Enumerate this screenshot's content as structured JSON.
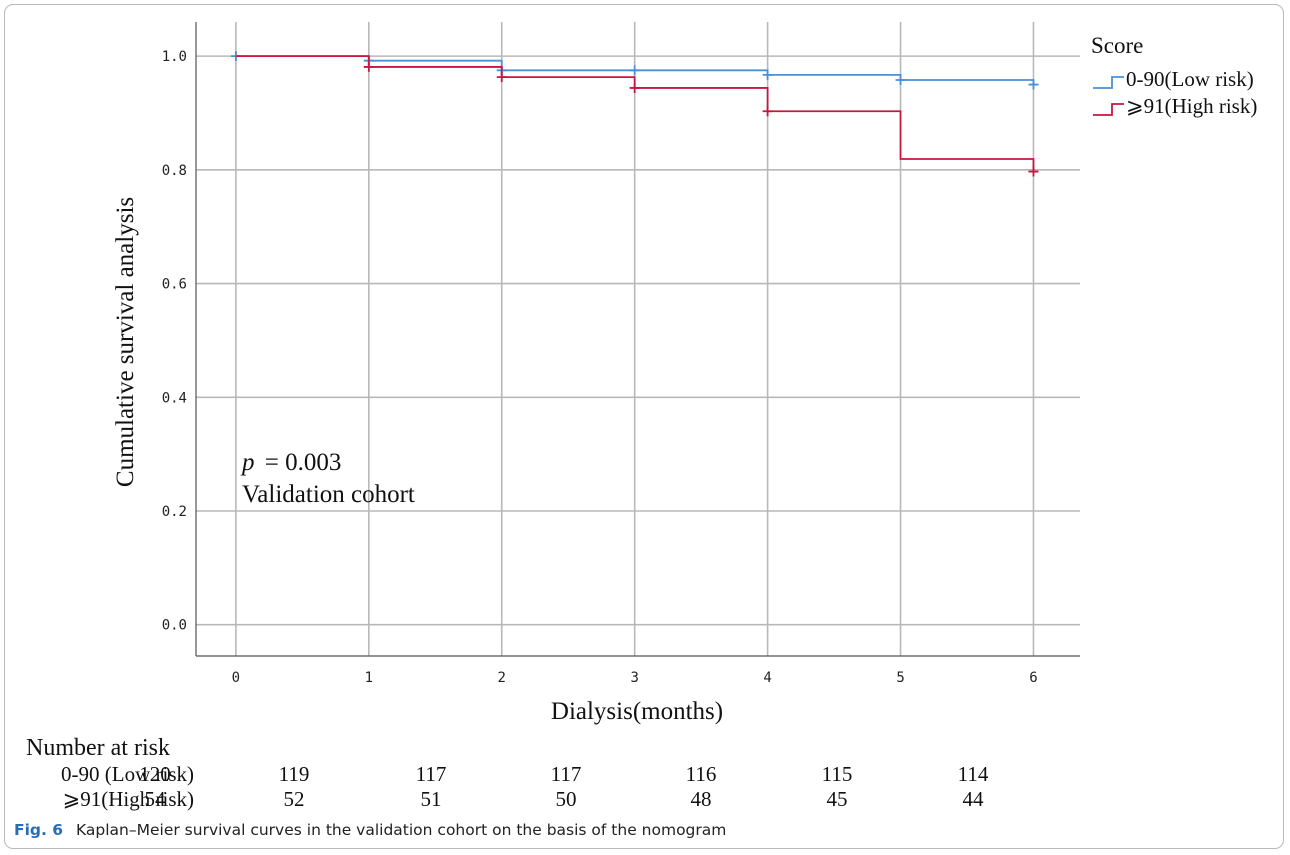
{
  "chart_data": {
    "type": "line",
    "step": true,
    "annotation_p_label": "p",
    "annotation_p_value": "= 0.003",
    "annotation_cohort": "Validation cohort",
    "xlabel": "Dialysis(months)",
    "ylabel": "Cumulative survival analysis",
    "xlim": [
      -0.3,
      6.35
    ],
    "ylim": [
      -0.055,
      1.06
    ],
    "x_ticks": [
      0,
      1,
      2,
      3,
      4,
      5,
      6
    ],
    "x_tick_labels": [
      "0",
      "1",
      "2",
      "3",
      "4",
      "5",
      "6"
    ],
    "y_ticks": [
      0.0,
      0.2,
      0.4,
      0.6,
      0.8,
      1.0
    ],
    "y_tick_labels": [
      "0.0",
      "0.2",
      "0.4",
      "0.6",
      "0.8",
      "1.0"
    ],
    "grid": true,
    "legend": {
      "title": "Score",
      "placement": "top-right outside"
    },
    "series": [
      {
        "name": "0-90(Low risk)",
        "color": "#4a90d9",
        "steps": [
          {
            "x": 0,
            "y": 1.0
          },
          {
            "x": 1,
            "y": 0.992
          },
          {
            "x": 2,
            "y": 0.975
          },
          {
            "x": 3,
            "y": 0.975
          },
          {
            "x": 4,
            "y": 0.967
          },
          {
            "x": 5,
            "y": 0.958
          },
          {
            "x": 6,
            "y": 0.95
          }
        ],
        "censor_marks": [
          {
            "x": 0,
            "y": 1.0
          },
          {
            "x": 1,
            "y": 0.992
          },
          {
            "x": 2,
            "y": 0.975
          },
          {
            "x": 3,
            "y": 0.975
          },
          {
            "x": 4,
            "y": 0.967
          },
          {
            "x": 5,
            "y": 0.958
          },
          {
            "x": 6,
            "y": 0.95
          }
        ]
      },
      {
        "name": "⩾91(High risk)",
        "color": "#c8163f",
        "steps": [
          {
            "x": 0,
            "y": 1.0
          },
          {
            "x": 1,
            "y": 0.981
          },
          {
            "x": 2,
            "y": 0.963
          },
          {
            "x": 3,
            "y": 0.944
          },
          {
            "x": 4,
            "y": 0.903
          },
          {
            "x": 5,
            "y": 0.819
          },
          {
            "x": 6,
            "y": 0.797
          }
        ],
        "censor_marks": [
          {
            "x": 1,
            "y": 0.981
          },
          {
            "x": 2,
            "y": 0.963
          },
          {
            "x": 3,
            "y": 0.944
          },
          {
            "x": 4,
            "y": 0.903
          },
          {
            "x": 6,
            "y": 0.797
          }
        ]
      }
    ],
    "risk_table": {
      "title": "Number at risk",
      "rows": [
        {
          "label": "0-90 (Low risk)",
          "values": [
            120,
            119,
            117,
            117,
            116,
            115,
            114
          ]
        },
        {
          "label": "⩾91(High risk)",
          "values": [
            54,
            52,
            51,
            50,
            48,
            45,
            44
          ]
        }
      ]
    }
  },
  "caption": {
    "label": "Fig. 6",
    "text": "Kaplan–Meier survival curves in the validation cohort on the basis of the nomogram"
  }
}
